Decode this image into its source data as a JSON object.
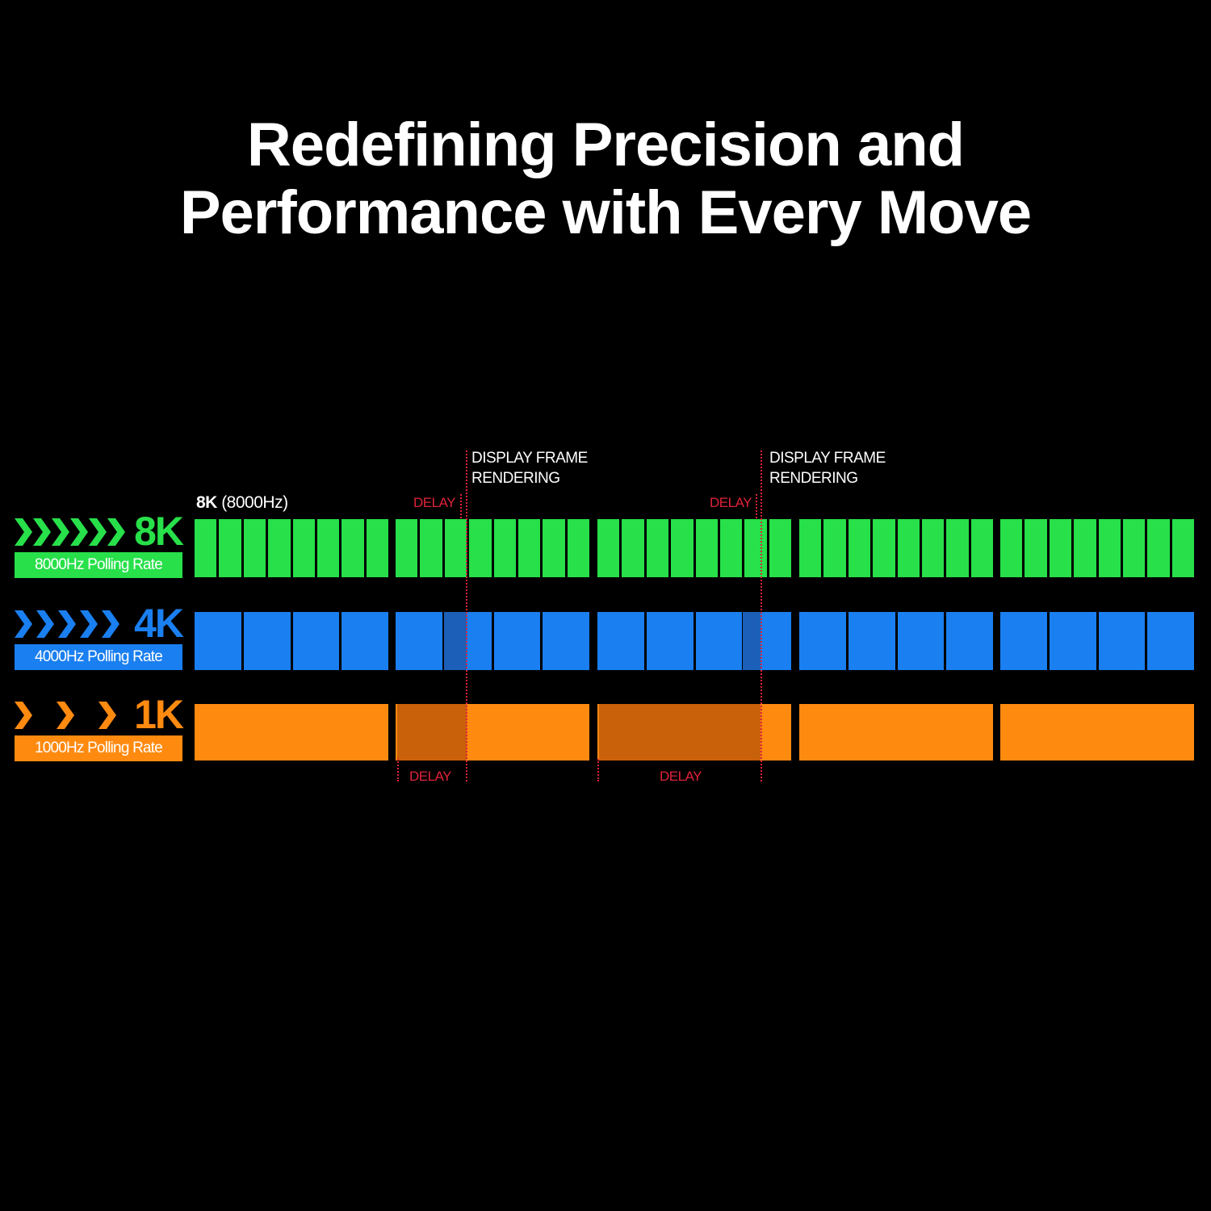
{
  "title": {
    "line1": "Redefining Precision and",
    "line2": "Performance with Every Move"
  },
  "colors": {
    "background": "#000000",
    "green": "#27e04a",
    "blue": "#1a7ff0",
    "orange": "#ff8a10",
    "delay_red": "#e0223a",
    "orange_delay_shade": "#c9600a",
    "blue_delay_shade": "#1c5fb8"
  },
  "rows": [
    {
      "key": "8k",
      "big": "8K",
      "sub": "8000Hz Polling Rate",
      "chevrons": 6,
      "color": "#27e04a",
      "segments_per_block": 8
    },
    {
      "key": "4k",
      "big": "4K",
      "sub": "4000Hz Polling Rate",
      "chevrons": 5,
      "color": "#1a7ff0",
      "segments_per_block": 4
    },
    {
      "key": "1k",
      "big": "1K",
      "sub": "1000Hz Polling Rate",
      "chevrons": 3,
      "color": "#ff8a10",
      "segments_per_block": 1
    }
  ],
  "blocks": 5,
  "rate_label": {
    "bold": "8K",
    "rest": " (8000Hz)"
  },
  "frame_label": {
    "line1": "DISPLAY FRAME",
    "line2": "RENDERING"
  },
  "delay_label": "DELAY",
  "icons": {
    "chevron": "chevron-right-icon"
  }
}
